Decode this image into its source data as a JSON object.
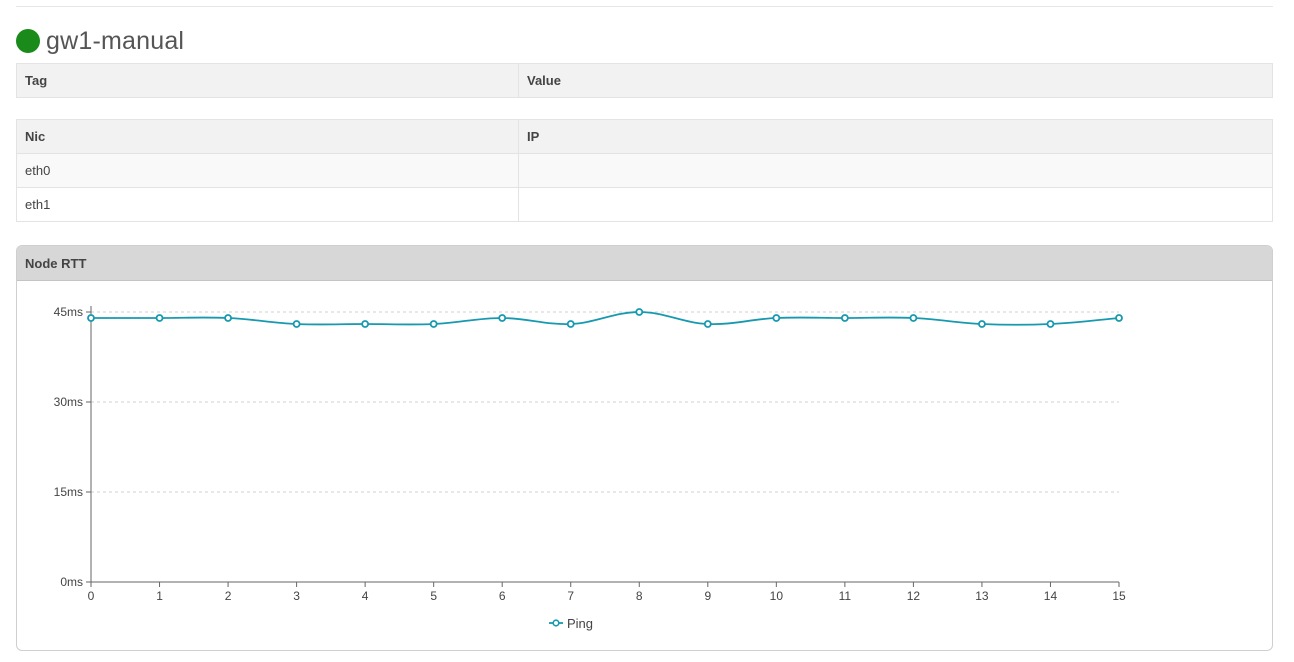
{
  "node": {
    "name": "gw1-manual",
    "status_color": "#1a8a1a"
  },
  "tags_table": {
    "columns": [
      "Tag",
      "Value"
    ],
    "rows": []
  },
  "nics_table": {
    "columns": [
      "Nic",
      "IP"
    ],
    "rows": [
      [
        "eth0",
        ""
      ],
      [
        "eth1",
        ""
      ]
    ]
  },
  "rtt_panel": {
    "title": "Node RTT"
  },
  "chart_data": {
    "type": "line",
    "title": "",
    "xlabel": "",
    "ylabel": "",
    "x": [
      0,
      1,
      2,
      3,
      4,
      5,
      6,
      7,
      8,
      9,
      10,
      11,
      12,
      13,
      14,
      15
    ],
    "x_tick_labels": [
      "0",
      "1",
      "2",
      "3",
      "4",
      "5",
      "6",
      "7",
      "8",
      "9",
      "10",
      "11",
      "12",
      "13",
      "14",
      "15"
    ],
    "series": [
      {
        "name": "Ping",
        "color": "#1799b0",
        "values": [
          44,
          44,
          44,
          43,
          43,
          43,
          44,
          43,
          45,
          43,
          44,
          44,
          44,
          43,
          43,
          44
        ]
      }
    ],
    "yticks": [
      0,
      15,
      30,
      45
    ],
    "y_tick_labels": [
      "0ms",
      "15ms",
      "30ms",
      "45ms"
    ],
    "xlim": [
      0,
      15
    ],
    "ylim": [
      0,
      45
    ],
    "grid": true,
    "legend_position": "bottom-center",
    "line_shape": "smooth",
    "markers": "hollow-circle"
  }
}
